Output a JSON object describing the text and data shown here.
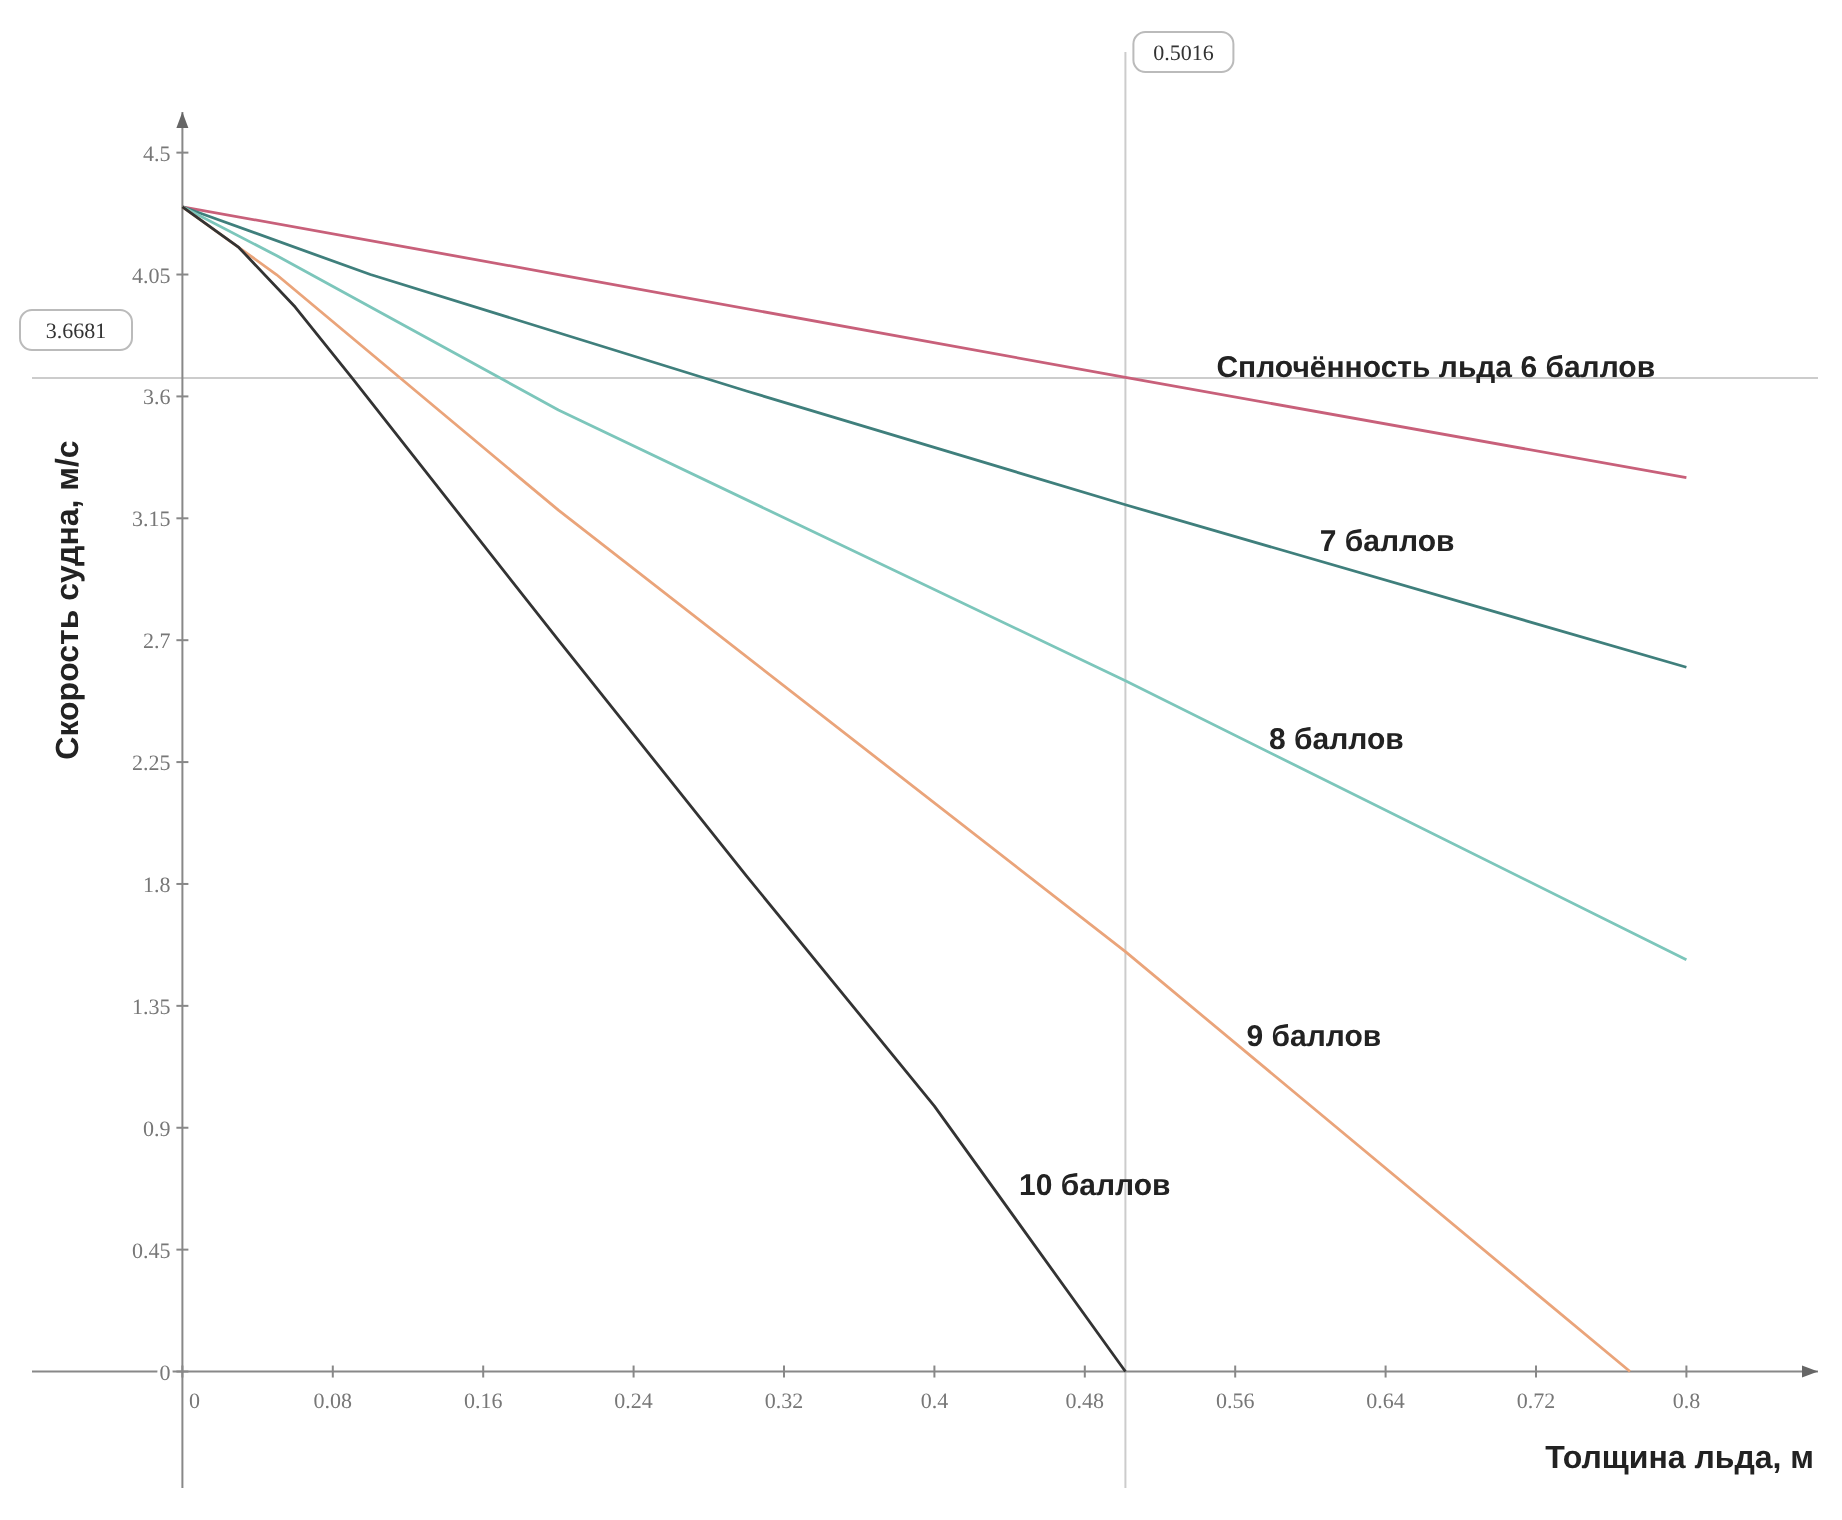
{
  "chart_data": {
    "type": "line",
    "xlabel": "Толщина льда, м",
    "ylabel": "Скорость судна, м/с",
    "xlim": [
      -0.08,
      0.87
    ],
    "ylim": [
      -0.43,
      4.65
    ],
    "xticks": [
      0,
      0.08,
      0.16,
      0.24,
      0.32,
      0.4,
      0.48,
      0.56,
      0.64,
      0.72,
      0.8
    ],
    "yticks": [
      0,
      0.45,
      0.9,
      1.35,
      1.8,
      2.25,
      2.7,
      3.15,
      3.6,
      4.05,
      4.5
    ],
    "grid": false,
    "marker": "none",
    "line_style": "solid",
    "series": [
      {
        "name": "Сплочённость льда 6 баллов",
        "color": "#c8607a",
        "x": [
          0,
          0.2,
          0.5016,
          0.8
        ],
        "values": [
          4.3,
          4.05,
          3.67,
          3.3
        ]
      },
      {
        "name": "7 баллов",
        "color": "#3f7f7c",
        "x": [
          0,
          0.1,
          0.3,
          0.5016,
          0.8
        ],
        "values": [
          4.3,
          4.05,
          3.62,
          3.2,
          2.6
        ]
      },
      {
        "name": "8 баллов",
        "color": "#7cc6bb",
        "x": [
          0,
          0.05,
          0.2,
          0.5016,
          0.8
        ],
        "values": [
          4.3,
          4.12,
          3.55,
          2.55,
          1.52
        ]
      },
      {
        "name": "9 баллов",
        "color": "#eaa47a",
        "x": [
          0,
          0.05,
          0.2,
          0.5016,
          0.77
        ],
        "values": [
          4.3,
          4.05,
          3.18,
          1.55,
          0
        ]
      },
      {
        "name": "10 баллов",
        "color": "#333333",
        "x": [
          0,
          0.03,
          0.06,
          0.09,
          0.2,
          0.3,
          0.4,
          0.5016
        ],
        "values": [
          4.3,
          4.15,
          3.93,
          3.67,
          2.7,
          1.83,
          0.98,
          0
        ]
      }
    ],
    "ref_lines": [
      {
        "axis": "x",
        "value": 0.5016,
        "label": "0.5016",
        "color": "#cccccc"
      },
      {
        "axis": "y",
        "value": 3.6681,
        "label": "3.6681",
        "color": "#cccccc"
      }
    ]
  }
}
